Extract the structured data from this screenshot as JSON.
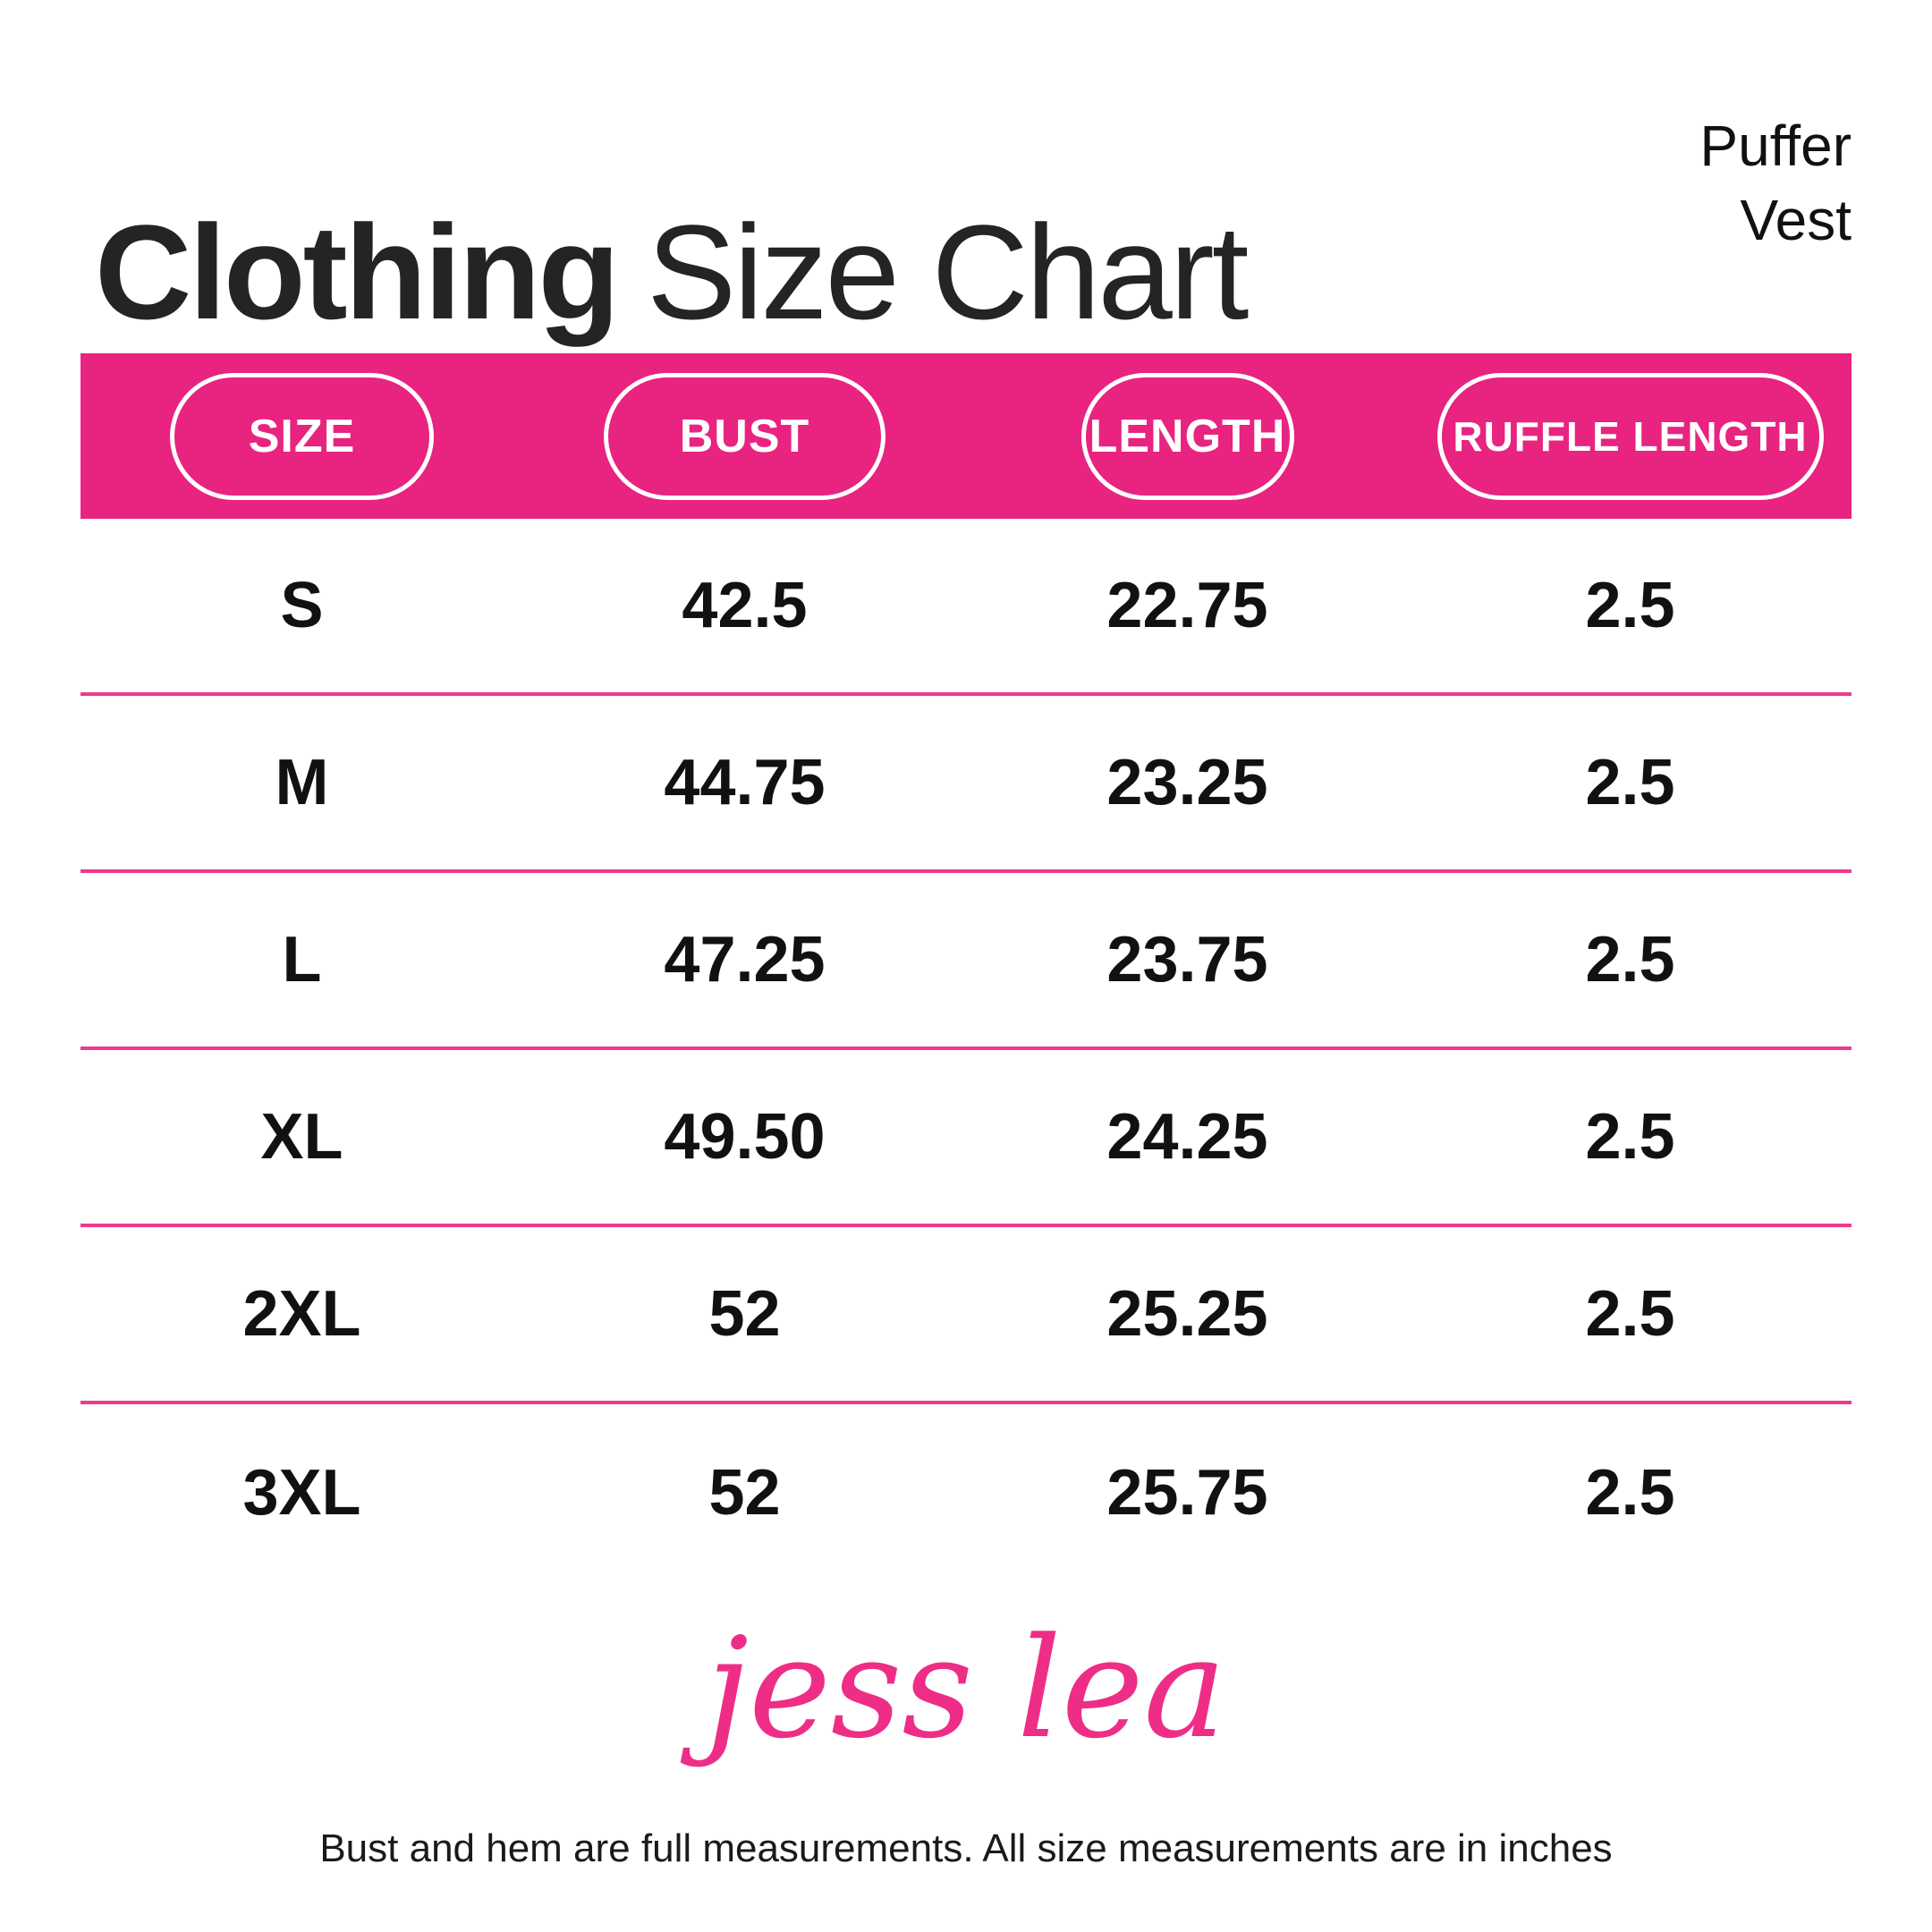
{
  "header": {
    "title_bold": "Clothing",
    "title_regular": "Size Chart",
    "product": {
      "line1": "Puffer",
      "line2": "Vest"
    }
  },
  "table": {
    "columns": [
      "SIZE",
      "BUST",
      "LENGTH",
      "RUFFLE LENGTH"
    ],
    "rows": [
      {
        "size": "S",
        "bust": "42.5",
        "length": "22.75",
        "ruffle_length": "2.5"
      },
      {
        "size": "M",
        "bust": "44.75",
        "length": "23.25",
        "ruffle_length": "2.5"
      },
      {
        "size": "L",
        "bust": "47.25",
        "length": "23.75",
        "ruffle_length": "2.5"
      },
      {
        "size": "XL",
        "bust": "49.50",
        "length": "24.25",
        "ruffle_length": "2.5"
      },
      {
        "size": "2XL",
        "bust": "52",
        "length": "25.25",
        "ruffle_length": "2.5"
      },
      {
        "size": "3XL",
        "bust": "52",
        "length": "25.75",
        "ruffle_length": "2.5"
      }
    ]
  },
  "branding": {
    "logo_text": "jess lea"
  },
  "footer": {
    "note": "Bust and hem are full measurements. All size measurements are in inches"
  },
  "colors": {
    "header_bar": "#E82380",
    "divider": "#ED3A8C",
    "logo": "#EE2E86",
    "text": "#1A1A1A"
  }
}
